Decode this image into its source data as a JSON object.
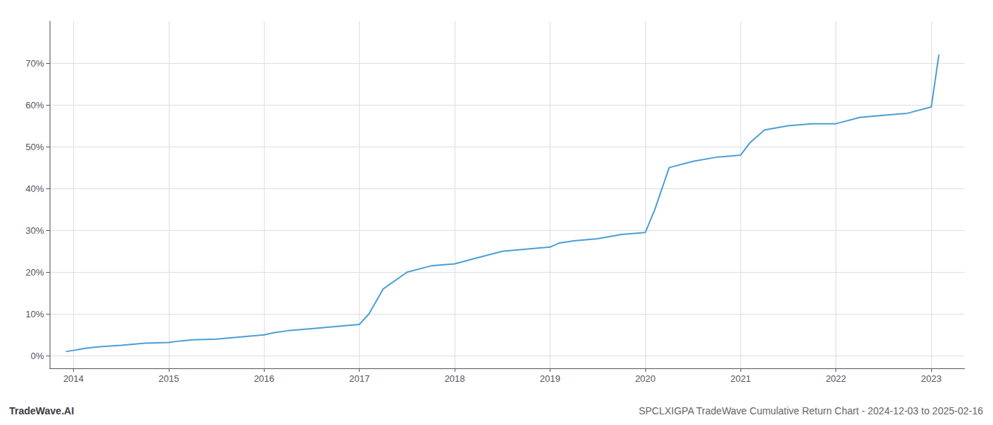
{
  "chart_data": {
    "type": "line",
    "title": "TradeWave.AI",
    "subtitle": "SPCLXIGPA TradeWave Cumulative Return Chart - 2024-12-03 to 2025-02-16",
    "color": "#4a9fd4",
    "grid": true,
    "x": [
      2013.92,
      2014.0,
      2014.05,
      2014.1,
      2014.2,
      2014.3,
      2014.5,
      2014.75,
      2015.0,
      2015.1,
      2015.25,
      2015.5,
      2015.75,
      2016.0,
      2016.1,
      2016.25,
      2016.5,
      2016.75,
      2017.0,
      2017.1,
      2017.25,
      2017.5,
      2017.75,
      2018.0,
      2018.25,
      2018.5,
      2018.75,
      2019.0,
      2019.1,
      2019.25,
      2019.5,
      2019.75,
      2020.0,
      2020.1,
      2020.25,
      2020.5,
      2020.75,
      2021.0,
      2021.1,
      2021.25,
      2021.5,
      2021.75,
      2022.0,
      2022.25,
      2022.5,
      2022.75,
      2023.0,
      2023.08
    ],
    "values": [
      1.0,
      1.3,
      1.5,
      1.7,
      2.0,
      2.2,
      2.5,
      3.0,
      3.2,
      3.5,
      3.8,
      4.0,
      4.5,
      5.0,
      5.5,
      6.0,
      6.5,
      7.0,
      7.5,
      10.0,
      16.0,
      20.0,
      21.5,
      22.0,
      23.5,
      25.0,
      25.5,
      26.0,
      27.0,
      27.5,
      28.0,
      29.0,
      29.5,
      35.0,
      45.0,
      46.5,
      47.5,
      48.0,
      51.0,
      54.0,
      55.0,
      55.5,
      55.5,
      57.0,
      57.5,
      58.0,
      59.5,
      72.0
    ],
    "xlim": [
      2013.75,
      2023.35
    ],
    "xticks": [
      2014,
      2015,
      2016,
      2017,
      2018,
      2019,
      2020,
      2021,
      2022,
      2023
    ],
    "ylim": [
      -3,
      80
    ],
    "yticks": [
      {
        "value": 0,
        "label": "0%"
      },
      {
        "value": 10,
        "label": "10%"
      },
      {
        "value": 20,
        "label": "20%"
      },
      {
        "value": 30,
        "label": "30%"
      },
      {
        "value": 40,
        "label": "40%"
      },
      {
        "value": 50,
        "label": "50%"
      },
      {
        "value": 60,
        "label": "60%"
      },
      {
        "value": 70,
        "label": "70%"
      }
    ]
  }
}
